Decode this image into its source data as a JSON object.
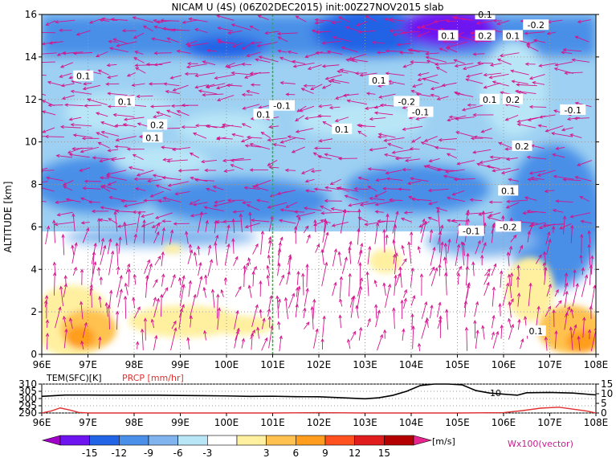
{
  "title": "NICAM U (4S) (06Z02DEC2015) init:00Z27NOV2015 slab",
  "chart_data": [
    {
      "type": "heatmap",
      "name": "main-panel",
      "ylabel": "ALTITUDE [km]",
      "xlim": [
        96,
        108
      ],
      "ylim": [
        0,
        16
      ],
      "x_tick_labels": [
        "96E",
        "97E",
        "98E",
        "99E",
        "100E",
        "101E",
        "102E",
        "103E",
        "104E",
        "105E",
        "106E",
        "107E",
        "108E"
      ],
      "y_tick_values": [
        0,
        2,
        4,
        6,
        8,
        10,
        12,
        14,
        16
      ],
      "y_tick_labels": [
        "0",
        "2",
        "4",
        "6",
        "8",
        "10",
        "12",
        "14",
        "16"
      ],
      "marker_line_x": 101,
      "grid": true,
      "contour_labels": [
        {
          "text": "0.1",
          "x": 96.9,
          "y": 13.1
        },
        {
          "text": "0.1",
          "x": 97.8,
          "y": 11.9
        },
        {
          "text": "0.2",
          "x": 98.5,
          "y": 10.8
        },
        {
          "text": "0.1",
          "x": 98.4,
          "y": 10.2
        },
        {
          "text": "0.1",
          "x": 100.8,
          "y": 11.3
        },
        {
          "text": "-0.1",
          "x": 101.2,
          "y": 11.7
        },
        {
          "text": "0.1",
          "x": 102.5,
          "y": 10.6
        },
        {
          "text": "0.1",
          "x": 103.3,
          "y": 12.9
        },
        {
          "text": "-0.2",
          "x": 103.9,
          "y": 11.9
        },
        {
          "text": "-0.1",
          "x": 104.2,
          "y": 11.4
        },
        {
          "text": "0.1",
          "x": 104.8,
          "y": 15.0
        },
        {
          "text": "0.2",
          "x": 105.6,
          "y": 15.0
        },
        {
          "text": "0.1",
          "x": 105.6,
          "y": 16.0
        },
        {
          "text": "0.1",
          "x": 106.2,
          "y": 15.0
        },
        {
          "text": "-0.2",
          "x": 106.7,
          "y": 15.5
        },
        {
          "text": "0.1",
          "x": 105.7,
          "y": 12.0
        },
        {
          "text": "0.2",
          "x": 106.2,
          "y": 12.0
        },
        {
          "text": "-0.1",
          "x": 107.5,
          "y": 11.5
        },
        {
          "text": "0.2",
          "x": 106.4,
          "y": 9.8
        },
        {
          "text": "0.1",
          "x": 106.1,
          "y": 7.7
        },
        {
          "text": "-0.1",
          "x": 105.3,
          "y": 5.8
        },
        {
          "text": "-0.2",
          "x": 106.1,
          "y": 6.0
        },
        {
          "text": "0.1",
          "x": 106.7,
          "y": 1.1
        }
      ]
    },
    {
      "type": "line",
      "name": "surface-panel",
      "xlim": [
        96,
        108
      ],
      "left_axis_label": "TEM(SFC)[K]",
      "right_axis_label": "PRCP [mm/hr]",
      "left_ticks": [
        "310",
        "305",
        "300",
        "295",
        "290"
      ],
      "left_tick_values": [
        310,
        305,
        300,
        295,
        290
      ],
      "right_ticks": [
        "15",
        "10",
        "5",
        "0"
      ],
      "right_tick_values": [
        15,
        10,
        5,
        0
      ],
      "annotation": "10",
      "series": [
        {
          "name": "TEM(SFC)[K]",
          "color": "#000000",
          "axis": "left",
          "x": [
            96,
            96.5,
            97,
            97.5,
            98,
            98.5,
            99,
            99.5,
            100,
            100.5,
            101,
            101.5,
            102,
            102.5,
            103,
            103.3,
            103.6,
            103.9,
            104.2,
            104.5,
            104.8,
            105.1,
            105.4,
            105.7,
            106,
            106.3,
            106.5,
            107,
            107.5,
            108
          ],
          "y": [
            301.5,
            302.4,
            302.4,
            302.3,
            302.3,
            302.3,
            302.1,
            302,
            301.8,
            301.5,
            301.6,
            301.3,
            301.2,
            300.5,
            299.8,
            300.5,
            302.2,
            305,
            309,
            310,
            310,
            309.5,
            305.5,
            303.8,
            303,
            302.3,
            304,
            304.2,
            303.8,
            302.5
          ]
        },
        {
          "name": "PRCP [mm/hr]",
          "color": "#e03030",
          "axis": "right",
          "x": [
            96,
            96.2,
            96.4,
            96.6,
            96.8,
            97,
            98,
            99,
            100,
            101,
            102,
            103,
            104,
            105,
            106,
            106.4,
            106.8,
            107.2,
            107.5,
            107.8,
            108
          ],
          "y": [
            0,
            1,
            2.6,
            1.6,
            0.3,
            0,
            0,
            0,
            0,
            0,
            0.2,
            0,
            0,
            0,
            0.2,
            1.2,
            2.5,
            3,
            2,
            1,
            0
          ]
        }
      ]
    },
    {
      "type": "colorbar",
      "name": "colorbar",
      "labels": [
        "-15",
        "-12",
        "-9",
        "-6",
        "-3",
        "3",
        "6",
        "9",
        "12",
        "15"
      ],
      "colors": [
        "#a000c8",
        "#6e14f0",
        "#2164e6",
        "#4a8fe8",
        "#7fb4ee",
        "#b9e6f7",
        "#ffffff",
        "#fff0a0",
        "#ffc250",
        "#ff9d1e",
        "#ff5020",
        "#e01c1c",
        "#b40000",
        "#e8258f"
      ],
      "units": "[m/s]",
      "vector_note": "Wx100(vector)"
    }
  ]
}
